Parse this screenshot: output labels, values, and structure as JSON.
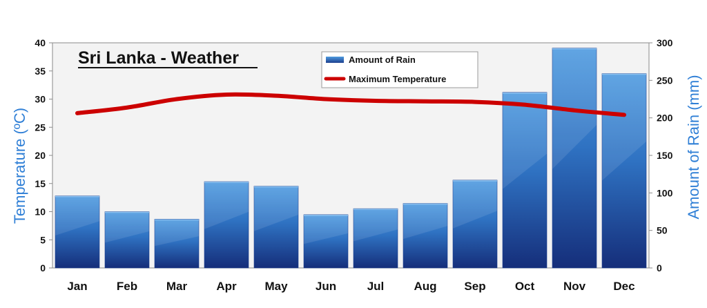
{
  "chart_data": {
    "type": "bar+line",
    "title": "Sri Lanka - Weather",
    "categories": [
      "Jan",
      "Feb",
      "Mar",
      "Apr",
      "May",
      "Jun",
      "Jul",
      "Aug",
      "Sep",
      "Oct",
      "Nov",
      "Dec"
    ],
    "series": [
      {
        "name": "Amount of Rain",
        "type": "bar",
        "axis": "right",
        "color": "#2a6db8",
        "values": [
          96,
          75,
          65,
          115,
          109,
          71,
          79,
          86,
          117,
          234,
          293,
          259
        ]
      },
      {
        "name": "Maximum Temperature",
        "type": "line",
        "axis": "left",
        "color": "#cc0000",
        "values": [
          27.5,
          28.5,
          30,
          30.8,
          30.6,
          30.0,
          29.7,
          29.6,
          29.5,
          29.0,
          28.0,
          27.2
        ]
      }
    ],
    "y_left": {
      "label": "Temperature (ºC)",
      "min": 0,
      "max": 40,
      "step": 5,
      "ticks": [
        "0",
        "5",
        "10",
        "15",
        "20",
        "25",
        "30",
        "35",
        "40"
      ]
    },
    "y_right": {
      "label": "Amount of Rain (mm)",
      "min": 0,
      "max": 300,
      "step": 50,
      "ticks": [
        "0",
        "50",
        "100",
        "150",
        "200",
        "250",
        "300"
      ]
    },
    "grid": false,
    "legend_position": "top-center"
  }
}
